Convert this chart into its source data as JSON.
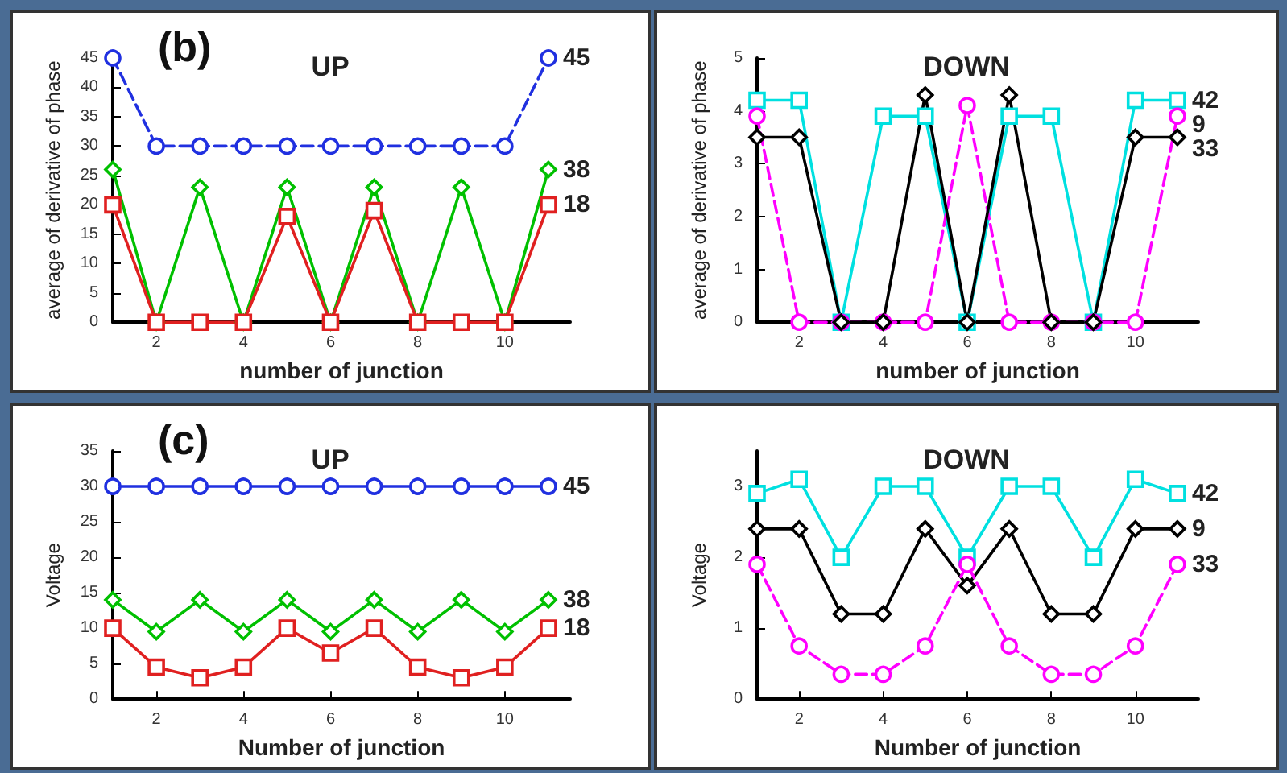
{
  "chart_data": [
    {
      "type": "line",
      "title": "UP",
      "annotations": [
        "(b)"
      ],
      "xlabel": "number of junction",
      "ylabel": "average of derivative of phase",
      "x": [
        1,
        2,
        3,
        4,
        5,
        6,
        7,
        8,
        9,
        10,
        11
      ],
      "xlim": [
        1,
        11.5
      ],
      "xticks": [
        2,
        4,
        6,
        8,
        10
      ],
      "ylim": [
        0,
        45
      ],
      "yticks": [
        0,
        5,
        10,
        15,
        20,
        25,
        30,
        35,
        40,
        45
      ],
      "grid": false,
      "series": [
        {
          "name": "45",
          "color": "#2030e0",
          "marker": "circle",
          "line_style": "dashed",
          "values": [
            45,
            30,
            30,
            30,
            30,
            30,
            30,
            30,
            30,
            30,
            45
          ]
        },
        {
          "name": "38",
          "color": "#00c000",
          "marker": "diamond",
          "line_style": "solid",
          "values": [
            26,
            0,
            23,
            0,
            23,
            0,
            23,
            0,
            23,
            0,
            26
          ]
        },
        {
          "name": "18",
          "color": "#e02020",
          "marker": "square",
          "line_style": "solid",
          "values": [
            20,
            0,
            0,
            0,
            18,
            0,
            19,
            0,
            0,
            0,
            20
          ]
        }
      ]
    },
    {
      "type": "line",
      "title": "DOWN",
      "xlabel": "number of junction",
      "ylabel": "average of derivative of phase",
      "x": [
        1,
        2,
        3,
        4,
        5,
        6,
        7,
        8,
        9,
        10,
        11
      ],
      "xlim": [
        1,
        11.5
      ],
      "xticks": [
        2,
        4,
        6,
        8,
        10
      ],
      "ylim": [
        0,
        5
      ],
      "yticks": [
        0,
        1,
        2,
        3,
        4,
        5
      ],
      "grid": false,
      "series": [
        {
          "name": "42",
          "color": "#00e0e0",
          "marker": "square",
          "line_style": "solid",
          "values": [
            4.2,
            4.2,
            0,
            3.9,
            3.9,
            0,
            3.9,
            3.9,
            0,
            4.2,
            4.2
          ]
        },
        {
          "name": "9",
          "color": "#ff00ff",
          "marker": "circle",
          "line_style": "dashed",
          "values": [
            3.9,
            0,
            0,
            0,
            0,
            4.1,
            0,
            0,
            0,
            0,
            3.9
          ]
        },
        {
          "name": "33",
          "color": "#000000",
          "marker": "diamond",
          "line_style": "solid",
          "values": [
            3.5,
            3.5,
            0,
            0,
            4.3,
            0,
            4.3,
            0,
            0,
            3.5,
            3.5
          ]
        }
      ]
    },
    {
      "type": "line",
      "title": "UP",
      "annotations": [
        "(c)"
      ],
      "xlabel": "Number of junction",
      "ylabel": "Voltage",
      "x": [
        1,
        2,
        3,
        4,
        5,
        6,
        7,
        8,
        9,
        10,
        11
      ],
      "xlim": [
        1,
        11.5
      ],
      "xticks": [
        2,
        4,
        6,
        8,
        10
      ],
      "ylim": [
        0,
        35
      ],
      "yticks": [
        0,
        5,
        10,
        15,
        20,
        25,
        30,
        35
      ],
      "grid": false,
      "series": [
        {
          "name": "45",
          "color": "#2030e0",
          "marker": "circle",
          "line_style": "solid",
          "values": [
            30,
            30,
            30,
            30,
            30,
            30,
            30,
            30,
            30,
            30,
            30
          ]
        },
        {
          "name": "38",
          "color": "#00c000",
          "marker": "diamond",
          "line_style": "solid",
          "values": [
            14,
            9.5,
            14,
            9.5,
            14,
            9.5,
            14,
            9.5,
            14,
            9.5,
            14
          ]
        },
        {
          "name": "18",
          "color": "#e02020",
          "marker": "square",
          "line_style": "solid",
          "values": [
            10,
            4.5,
            3,
            4.5,
            10,
            6.5,
            10,
            4.5,
            3,
            4.5,
            10
          ]
        }
      ]
    },
    {
      "type": "line",
      "title": "DOWN",
      "xlabel": "Number of junction",
      "ylabel": "Voltage",
      "x": [
        1,
        2,
        3,
        4,
        5,
        6,
        7,
        8,
        9,
        10,
        11
      ],
      "xlim": [
        1,
        11.5
      ],
      "xticks": [
        2,
        4,
        6,
        8,
        10
      ],
      "ylim": [
        0,
        3.5
      ],
      "yticks": [
        0,
        1,
        2,
        3
      ],
      "grid": false,
      "series": [
        {
          "name": "42",
          "color": "#00e0e0",
          "marker": "square",
          "line_style": "solid",
          "values": [
            2.9,
            3.1,
            2,
            3,
            3,
            2,
            3,
            3,
            2,
            3.1,
            2.9
          ]
        },
        {
          "name": "9",
          "color": "#000000",
          "marker": "diamond",
          "line_style": "solid",
          "values": [
            2.4,
            2.4,
            1.2,
            1.2,
            2.4,
            1.6,
            2.4,
            1.2,
            1.2,
            2.4,
            2.4
          ]
        },
        {
          "name": "33",
          "color": "#ff00ff",
          "marker": "circle",
          "line_style": "dashed",
          "values": [
            1.9,
            0.75,
            0.35,
            0.35,
            0.75,
            1.9,
            0.75,
            0.35,
            0.35,
            0.75,
            1.9
          ]
        }
      ]
    }
  ]
}
